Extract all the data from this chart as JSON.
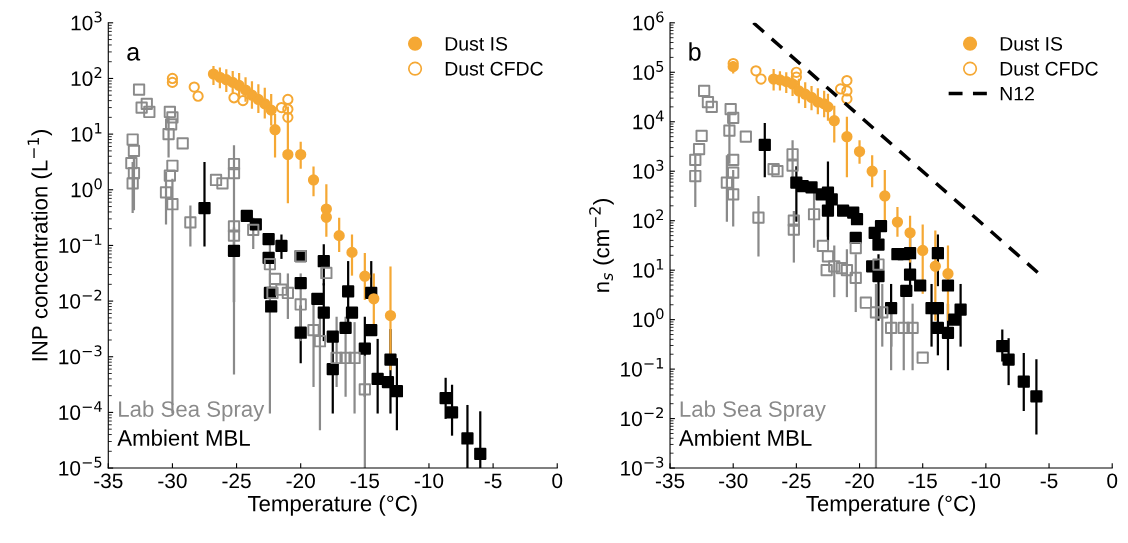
{
  "chart_data": [
    {
      "type": "scatter",
      "xlabel": "Temperature (°C)",
      "ylabel": "INP concentration (L$^{−1}$)",
      "log": "y",
      "legend": "top right",
      "grid": false,
      "xlim": [
        -35,
        0
      ],
      "xticks": [
        -35,
        -30,
        -25,
        -20,
        -15,
        -10,
        -5,
        0
      ],
      "ylim": [
        1e-05,
        1000
      ],
      "yticks": [
        {
          "value": 1e-05,
          "label": "10$^{−5}$"
        },
        {
          "value": 0.0001,
          "label": "10$^{−4}$"
        },
        {
          "value": 0.001,
          "label": "10$^{−3}$"
        },
        {
          "value": 0.01,
          "label": "10$^{−2}$"
        },
        {
          "value": 0.1,
          "label": "10$^{−1}$"
        },
        {
          "value": 1,
          "label": "10$^{0}$"
        },
        {
          "value": 10,
          "label": "10$^{1}$"
        },
        {
          "value": 100,
          "label": "10$^{2}$"
        },
        {
          "value": 1000,
          "label": "10$^{3}$"
        }
      ],
      "annotations": [
        "a"
      ],
      "series": [
        {
          "name": "Dust IS",
          "color": "#f5a834",
          "marker": "circle",
          "x": [
            -26.8,
            -26.3,
            -25.8,
            -25.3,
            -24.8,
            -24.3,
            -23.8,
            -23.3,
            -22.8,
            -22.3,
            -22,
            -21,
            -20,
            -19,
            -18,
            -18,
            -17,
            -16,
            -15,
            -14.3,
            -13
          ],
          "values": [
            120,
            105,
            95,
            85,
            75,
            62,
            50,
            42,
            35,
            27,
            12,
            4.3,
            4.3,
            1.5,
            0.45,
            0.32,
            0.15,
            0.075,
            0.028,
            0.011,
            0.0055
          ],
          "errors": [
            [
              80,
              160
            ],
            [
              70,
              150
            ],
            [
              60,
              140
            ],
            [
              55,
              130
            ],
            [
              45,
              120
            ],
            [
              40,
              100
            ],
            [
              30,
              85
            ],
            [
              25,
              75
            ],
            [
              20,
              65
            ],
            [
              15,
              50
            ],
            [
              4,
              22
            ],
            [
              0.6,
              30
            ],
            [
              2.5,
              7
            ],
            [
              0.8,
              2.5
            ],
            [
              0.15,
              1.2
            ],
            null,
            [
              0.08,
              0.3
            ],
            [
              0.03,
              0.15
            ],
            [
              0.011,
              0.07
            ],
            [
              0.004,
              0.03
            ],
            [
              0.0006,
              0.04
            ]
          ]
        },
        {
          "name": "Dust CFDC",
          "color": "#f5a834",
          "marker": "circle",
          "x": [
            -30,
            -30,
            -28.3,
            -28,
            -25.2,
            -24.5,
            -21.5,
            -21,
            -21,
            -21
          ],
          "values": [
            100,
            85,
            70,
            48,
            45,
            40,
            30,
            42,
            28,
            20
          ]
        },
        {
          "name": "Lab Sea Spray",
          "color": "#8a8a8a",
          "marker": "square",
          "x": [
            -33.1,
            -33,
            -33.2,
            -33,
            -33.1,
            -32.6,
            -32.4,
            -32,
            -31.8,
            -30.2,
            -30,
            -30.1,
            -30.3,
            -29.2,
            -30,
            -30.2,
            -30.5,
            -30,
            -28.6,
            -26.6,
            -26.1,
            -25.2,
            -25.2,
            -25.2,
            -25.2,
            -23.7,
            -22.4,
            -22,
            -22.2,
            -21.5,
            -21,
            -20,
            -20,
            -19,
            -18.5,
            -18,
            -17.2,
            -16.5,
            -15.8,
            -15
          ],
          "values": [
            8,
            5,
            3,
            2,
            1.3,
            63,
            30,
            35,
            25,
            25,
            20,
            15,
            10,
            6.8,
            2.7,
            1.8,
            0.9,
            0.55,
            0.26,
            1.5,
            1.3,
            2.9,
            2,
            0.22,
            0.15,
            0.19,
            0.046,
            0.025,
            0.014,
            0.016,
            0.014,
            0.0087,
            0.064,
            0.003,
            0.0019,
            0.032,
            0.00095,
            0.00095,
            0.00095,
            0.00026
          ],
          "errors": [
            null,
            null,
            null,
            [
              0.45,
              4
            ],
            [
              0.4,
              3
            ],
            null,
            null,
            null,
            null,
            null,
            null,
            null,
            [
              4,
              20
            ],
            null,
            null,
            null,
            [
              0.25,
              2
            ],
            [
              0.0001,
              1.5
            ],
            [
              0.1,
              0.5
            ],
            null,
            null,
            [
              0.0005,
              6
            ],
            null,
            null,
            null,
            [
              0.09,
              0.3
            ],
            [
              0.0001,
              0.1
            ],
            null,
            null,
            null,
            [
              0.005,
              0.03
            ],
            [
              0.002,
              0.03
            ],
            null,
            [
              0.0003,
              0.01
            ],
            [
              5e-05,
              0.006
            ],
            null,
            [
              0.0003,
              0.005
            ],
            [
              0.0002,
              0.005
            ],
            [
              0.0001,
              0.004
            ],
            [
              1e-05,
              0.001
            ]
          ]
        },
        {
          "name": "Ambient MBL",
          "color": "#000000",
          "marker": "square",
          "x": [
            -27.5,
            -24.2,
            -23.5,
            -22.5,
            -21.5,
            -25.2,
            -22.5,
            -22.4,
            -22.3,
            -20,
            -20,
            -20,
            -18.2,
            -18.7,
            -18.2,
            -16.3,
            -16,
            -16.5,
            -14.5,
            -14.5,
            -15,
            -14,
            -13,
            -13.2,
            -12.5,
            -8.7,
            -8.2,
            -7,
            -6,
            -17.5,
            -17.5
          ],
          "values": [
            0.47,
            0.34,
            0.24,
            0.13,
            0.098,
            0.08,
            0.06,
            0.014,
            0.008,
            0.064,
            0.021,
            0.0027,
            0.052,
            0.011,
            0.0062,
            0.015,
            0.0062,
            0.0033,
            0.014,
            0.003,
            0.0014,
            0.0004,
            0.00089,
            0.00035,
            0.00024,
            0.00018,
            0.0001,
            3.4e-05,
            1.8e-05,
            0.0023,
            0.0006
          ],
          "errors": [
            [
              0.1,
              3
            ],
            null,
            null,
            null,
            [
              0.06,
              0.15
            ],
            [
              0.01,
              0.2
            ],
            null,
            null,
            null,
            null,
            null,
            [
              0.0008,
              0.008
            ],
            [
              0.02,
              0.1
            ],
            null,
            [
              0.002,
              0.02
            ],
            [
              0.004,
              0.05
            ],
            null,
            null,
            [
              0.014,
              0.05
            ],
            null,
            [
              0.0002,
              0.005
            ],
            [
              0.0001,
              0.002
            ],
            [
              0.0001,
              0.003
            ],
            null,
            [
              5e-05,
              0.0009
            ],
            [
              8e-05,
              0.0004
            ],
            [
              4e-05,
              0.0003
            ],
            [
              1e-05,
              0.00013
            ],
            [
              1e-05,
              0.0001
            ],
            null,
            [
              0.0001,
              0.002
            ]
          ]
        }
      ]
    },
    {
      "type": "scatter",
      "xlabel": "Temperature (°C)",
      "ylabel": "n$_{s}$ (cm$^{−2}$)",
      "log": "y",
      "legend": "top right",
      "grid": false,
      "xlim": [
        -35,
        0
      ],
      "xticks": [
        -35,
        -30,
        -25,
        -20,
        -15,
        -10,
        -5,
        0
      ],
      "ylim": [
        0.001,
        1000000
      ],
      "yticks": [
        {
          "value": 0.001,
          "label": "10$^{−3}$"
        },
        {
          "value": 0.01,
          "label": "10$^{−2}$"
        },
        {
          "value": 0.1,
          "label": "10$^{−1}$"
        },
        {
          "value": 1,
          "label": "10$^{0}$"
        },
        {
          "value": 10,
          "label": "10$^{1}$"
        },
        {
          "value": 100,
          "label": "10$^{2}$"
        },
        {
          "value": 1000,
          "label": "10$^{3}$"
        },
        {
          "value": 10000,
          "label": "10$^{4}$"
        },
        {
          "value": 100000,
          "label": "10$^{5}$"
        },
        {
          "value": 1000000,
          "label": "10$^{6}$"
        }
      ],
      "annotations": [
        "b"
      ],
      "series": [
        {
          "name": "Dust IS",
          "color": "#f5a834",
          "marker": "circle",
          "x": [
            -30,
            -26.8,
            -26.3,
            -25.8,
            -25.3,
            -24.8,
            -24.3,
            -23.8,
            -23.3,
            -22.8,
            -22.5,
            -22,
            -21,
            -20,
            -19,
            -18,
            -17,
            -16,
            -15,
            -14,
            -13
          ],
          "values": [
            130000,
            73000,
            70000,
            65000,
            58000,
            42000,
            36000,
            31000,
            25000,
            23000,
            20000,
            10500,
            5000,
            2500,
            1000,
            316,
            94,
            57,
            25,
            12,
            8.5
          ],
          "errors": [
            [
              100000,
              160000
            ],
            [
              45000,
              110000
            ],
            [
              45000,
              100000
            ],
            [
              40000,
              95000
            ],
            [
              35000,
              90000
            ],
            [
              25000,
              70000
            ],
            [
              20000,
              60000
            ],
            [
              18000,
              50000
            ],
            [
              15000,
              45000
            ],
            [
              13000,
              40000
            ],
            [
              11000,
              35000
            ],
            [
              4000,
              20000
            ],
            [
              800,
              12000
            ],
            [
              1500,
              4000
            ],
            [
              500,
              2000
            ],
            [
              100,
              1000
            ],
            [
              50,
              180
            ],
            [
              15,
              120
            ],
            [
              3.5,
              80
            ],
            [
              1,
              60
            ],
            [
              1,
              30
            ]
          ]
        },
        {
          "name": "Dust CFDC",
          "color": "#f5a834",
          "marker": "circle",
          "x": [
            -30,
            -28.2,
            -27.8,
            -25,
            -25,
            -21.5,
            -21,
            -21,
            -21
          ],
          "values": [
            150000,
            107000,
            73000,
            100000,
            80000,
            46000,
            68000,
            42000,
            29000
          ]
        },
        {
          "name": "N12",
          "type": "line",
          "color": "#000000",
          "line_style": "dashed",
          "marker": "none",
          "x": [
            -28.4,
            -5.9
          ],
          "values": [
            1000000,
            9
          ]
        },
        {
          "name": "Lab Sea Spray",
          "color": "#8a8a8a",
          "marker": "square",
          "x": [
            -32.3,
            -32,
            -31.7,
            -33,
            -32.5,
            -32.7,
            -33,
            -30.2,
            -30,
            -30.3,
            -29,
            -30,
            -30,
            -30.5,
            -30,
            -28,
            -26.8,
            -26.5,
            -25.3,
            -25.3,
            -25.2,
            -25.2,
            -23.6,
            -22.9,
            -22.5,
            -22.6,
            -22,
            -21.4,
            -21,
            -20.3,
            -20.3,
            -19.5,
            -18.5,
            -18.7,
            -18.2,
            -17.5,
            -16.5,
            -15.8,
            -15
          ],
          "values": [
            42000,
            25000,
            20000,
            1700,
            5200,
            2800,
            800,
            18000,
            12000,
            6600,
            5000,
            1700,
            940,
            590,
            340,
            115,
            1100,
            1000,
            2200,
            1300,
            100,
            66,
            135,
            31,
            19,
            10,
            12,
            11,
            10,
            28,
            7,
            2.2,
            13,
            1.4,
            1.4,
            0.68,
            0.68,
            0.68,
            0.17
          ],
          "errors": [
            null,
            null,
            null,
            null,
            null,
            null,
            [
              200,
              2000
            ],
            null,
            null,
            [
              1500,
              15000
            ],
            null,
            null,
            null,
            [
              100,
              2000
            ],
            [
              80,
              1000
            ],
            [
              20,
              300
            ],
            null,
            null,
            [
              800,
              4000
            ],
            null,
            null,
            [
              15,
              150
            ],
            [
              30,
              400
            ],
            null,
            null,
            null,
            [
              3,
              30
            ],
            null,
            [
              3,
              25
            ],
            null,
            [
              1.5,
              20
            ],
            null,
            null,
            [
              0.001,
              5
            ],
            [
              0.3,
              5
            ],
            [
              0.1,
              2
            ],
            [
              0.1,
              3
            ],
            [
              0.1,
              2
            ],
            null
          ]
        },
        {
          "name": "Ambient MBL",
          "color": "#000000",
          "marker": "square",
          "x": [
            -27.5,
            -25,
            -24.5,
            -23.8,
            -23,
            -22.5,
            -22.2,
            -22.5,
            -21.3,
            -20.5,
            -20.2,
            -20.3,
            -18.8,
            -18.3,
            -18.5,
            -19,
            -18.5,
            -17,
            -16.5,
            -16,
            -16,
            -16.3,
            -17.5,
            -15.2,
            -13.8,
            -13,
            -14.3,
            -13.8,
            -13.8,
            -13,
            -12.5,
            -12,
            -8.7,
            -8.2,
            -7,
            -6
          ],
          "values": [
            3400,
            590,
            500,
            470,
            340,
            370,
            270,
            160,
            160,
            145,
            107,
            45,
            57,
            78,
            33,
            12,
            7.6,
            21,
            21,
            22,
            8.1,
            3.8,
            1.7,
            4.9,
            22,
            4.9,
            1.7,
            1.7,
            0.68,
            0.54,
            1.0,
            1.6,
            0.29,
            0.155,
            0.056,
            0.028
          ],
          "errors": [
            [
              800,
              9000
            ],
            [
              100,
              1200
            ],
            null,
            null,
            null,
            [
              50,
              1500
            ],
            null,
            [
              40,
              160
            ],
            null,
            null,
            null,
            null,
            null,
            null,
            null,
            null,
            [
              1,
              20
            ],
            null,
            null,
            [
              5,
              60
            ],
            null,
            null,
            [
              0.3,
              5
            ],
            null,
            [
              5,
              50
            ],
            null,
            [
              0.3,
              5
            ],
            null,
            [
              0.2,
              2
            ],
            [
              0.1,
              2
            ],
            null,
            [
              0.3,
              5
            ],
            [
              0.15,
              0.6
            ],
            [
              0.05,
              0.4
            ],
            [
              0.015,
              0.2
            ],
            [
              0.005,
              0.15
            ]
          ]
        }
      ]
    }
  ]
}
